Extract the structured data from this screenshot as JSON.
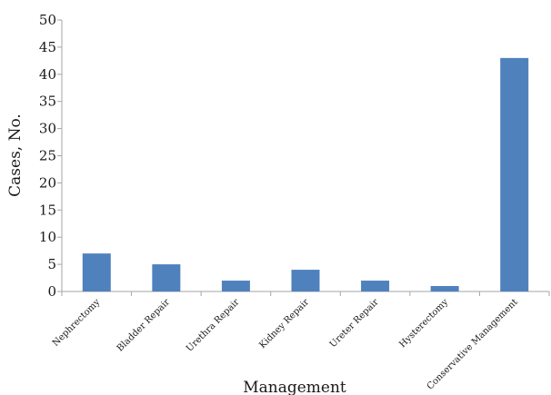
{
  "chart_data": {
    "type": "bar",
    "categories": [
      "Nephrectomy",
      "Bladder Repair",
      "Urethra Repair",
      "Kidney Repair",
      "Ureter Repair",
      "Hysterectomy",
      "Conservative Management"
    ],
    "values": [
      7,
      5,
      2,
      4,
      2,
      1,
      43
    ],
    "xlabel": "Management",
    "ylabel": "Cases, No.",
    "ylim": [
      0,
      50
    ],
    "yticks": [
      0,
      5,
      10,
      15,
      20,
      25,
      30,
      35,
      40,
      45,
      50
    ],
    "grid": false,
    "bar_color": "#4f81bd",
    "axis_color": "#a6a6a6"
  }
}
